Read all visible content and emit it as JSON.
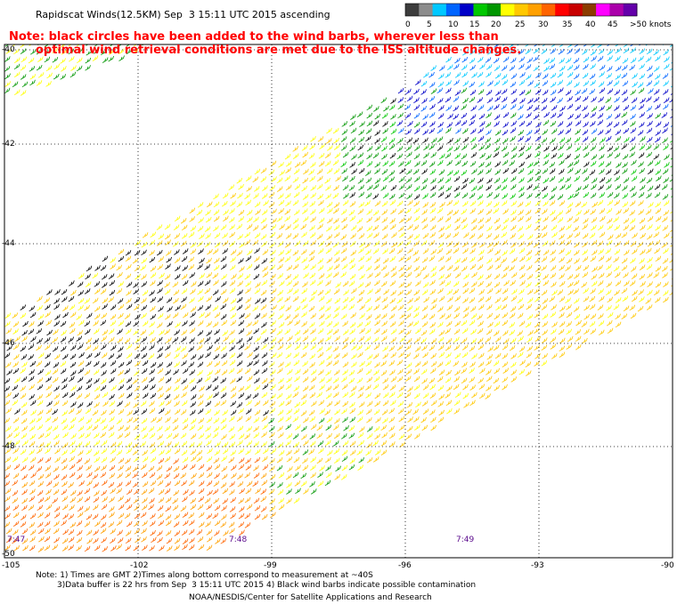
{
  "title": "Rapidscat Winds(12.5KM) Sep  3 15:11 UTC 2015 ascending",
  "note_line1": "Note: black circles have been added to the wind barbs, wherever less than",
  "note_line2": "optimal wind retrieval conditions are met due to the ISS altitude changes.",
  "color_scale": {
    "labels": [
      "0",
      "5",
      "10",
      "15",
      "20",
      "25",
      "30",
      "35",
      "40",
      "45",
      ">50 knots"
    ],
    "colors": [
      "#3c3c3c",
      "#8c8c8c",
      "#00c8ff",
      "#0064ff",
      "#0000c8",
      "#00c800",
      "#009600",
      "#ffff00",
      "#ffc800",
      "#ffa000",
      "#ff6400",
      "#ff0000",
      "#c80000",
      "#8c3c00",
      "#ff00ff",
      "#aa00aa",
      "#6400aa"
    ]
  },
  "lat_labels": [
    "-40",
    "-42",
    "-44",
    "-46",
    "-48",
    "-50"
  ],
  "lon_labels": [
    "-105",
    "-102",
    "-99",
    "-96",
    "-93",
    "-90"
  ],
  "time_labels": [
    "7:47",
    "7:48",
    "7:49"
  ],
  "footer_line1": "Note: 1) Times are GMT 2)Times along bottom correspond to measurement at ~40S",
  "footer_line2": "3)Data buffer is 22 hrs from Sep  3 15:11 UTC 2015 4) Black wind barbs indicate possible contamination",
  "footer_line3": "NOAA/NESDIS/Center for Satellite Applications and Research"
}
